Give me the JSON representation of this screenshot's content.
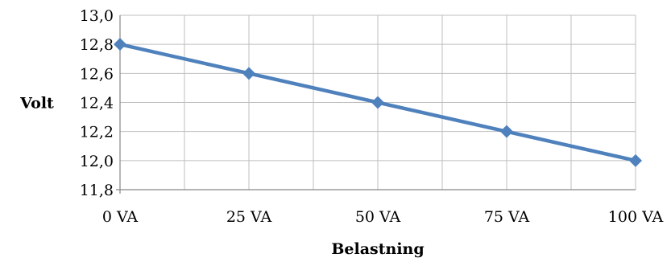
{
  "chart_data": {
    "type": "line",
    "title": "",
    "xlabel": "Belastning",
    "ylabel": "Volt",
    "categories": [
      "0 VA",
      "25 VA",
      "50 VA",
      "75 VA",
      "100 VA"
    ],
    "series": [
      {
        "values": [
          12.8,
          12.6,
          12.4,
          12.2,
          12.0
        ]
      }
    ],
    "ylim": [
      11.8,
      13.0
    ],
    "ystep": 0.2,
    "yticks": [
      "11,8",
      "12,0",
      "12,2",
      "12,4",
      "12,6",
      "12,8",
      "13,0"
    ],
    "grid": true,
    "legend": "none",
    "colors": {
      "line": "#4f81bd",
      "grid": "#bfbfbf",
      "axis": "#868686"
    }
  }
}
